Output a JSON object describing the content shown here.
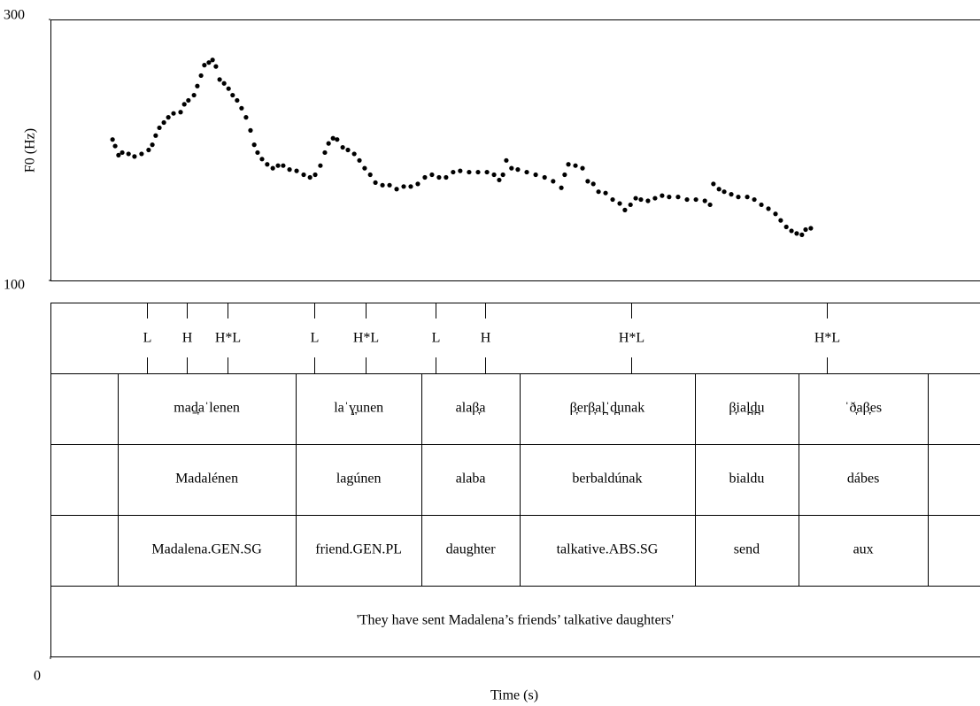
{
  "chart_data": {
    "type": "scatter",
    "ylabel": "F0 (Hz)",
    "xlabel": "Time (s)",
    "ylim": [
      100,
      300
    ],
    "yticks": [
      100,
      300
    ],
    "xlim": [
      0,
      2.5
    ],
    "xticks": [
      0
    ],
    "color": "#000000",
    "x": [
      0.167,
      0.174,
      0.183,
      0.193,
      0.21,
      0.226,
      0.245,
      0.264,
      0.274,
      0.283,
      0.293,
      0.305,
      0.317,
      0.331,
      0.35,
      0.36,
      0.371,
      0.386,
      0.395,
      0.405,
      0.414,
      0.426,
      0.436,
      0.445,
      0.455,
      0.467,
      0.479,
      0.49,
      0.502,
      0.514,
      0.526,
      0.538,
      0.548,
      0.557,
      0.569,
      0.583,
      0.598,
      0.612,
      0.626,
      0.643,
      0.662,
      0.681,
      0.698,
      0.712,
      0.726,
      0.738,
      0.748,
      0.76,
      0.771,
      0.786,
      0.8,
      0.817,
      0.831,
      0.845,
      0.86,
      0.874,
      0.893,
      0.912,
      0.931,
      0.95,
      0.969,
      0.988,
      1.007,
      1.026,
      1.045,
      1.064,
      1.083,
      1.102,
      1.126,
      1.15,
      1.174,
      1.193,
      1.207,
      1.217,
      1.226,
      1.24,
      1.257,
      1.281,
      1.305,
      1.329,
      1.352,
      1.374,
      1.383,
      1.393,
      1.412,
      1.431,
      1.445,
      1.46,
      1.474,
      1.493,
      1.512,
      1.531,
      1.545,
      1.56,
      1.574,
      1.588,
      1.607,
      1.626,
      1.645,
      1.664,
      1.688,
      1.712,
      1.736,
      1.76,
      1.774,
      1.783,
      1.798,
      1.812,
      1.831,
      1.85,
      1.874,
      1.893,
      1.912,
      1.931,
      1.95,
      1.964,
      1.979,
      1.993,
      2.007,
      2.021,
      2.031,
      2.045
    ],
    "values": [
      208,
      203,
      196,
      198,
      197,
      195,
      197,
      200,
      204,
      211,
      217,
      221,
      225,
      228,
      229,
      235,
      238,
      242,
      249,
      257,
      265,
      267,
      269,
      264,
      254,
      251,
      247,
      242,
      238,
      232,
      225,
      215,
      204,
      198,
      193,
      189,
      186,
      188,
      188,
      185,
      184,
      181,
      179,
      181,
      188,
      198,
      205,
      209,
      208,
      202,
      200,
      197,
      192,
      186,
      181,
      175,
      173,
      173,
      170,
      172,
      172,
      174,
      179,
      181,
      179,
      179,
      183,
      184,
      183,
      183,
      183,
      181,
      177,
      181,
      192,
      186,
      185,
      183,
      181,
      179,
      176,
      171,
      181,
      189,
      188,
      186,
      176,
      174,
      168,
      167,
      162,
      159,
      154,
      158,
      163,
      162,
      161,
      163,
      165,
      164,
      164,
      162,
      162,
      161,
      158,
      174,
      170,
      168,
      166,
      164,
      164,
      162,
      158,
      155,
      151,
      146,
      141,
      138,
      136,
      135,
      139,
      140
    ],
    "tones": {
      "labels": [
        "L",
        "H",
        "H*L",
        "L",
        "H*L",
        "L",
        "H",
        "H*L",
        "H*L"
      ],
      "times": [
        0.26,
        0.367,
        0.476,
        0.71,
        0.848,
        1.036,
        1.169,
        1.562,
        2.088
      ]
    },
    "boundaries": [
      0.181,
      0.66,
      0.998,
      1.262,
      1.733,
      2.012,
      2.36
    ],
    "tiers": [
      {
        "labels": [
          "maḏ̞aˈlenen",
          "laˈɣ̞unen",
          "alaβ̞a",
          "β̞erβ̞al̪ˈd̪unak",
          "β̞ial̪d̪u",
          "ˈð̞aβ̞es"
        ]
      },
      {
        "labels": [
          "Madalénen",
          "lagúnen",
          "alaba",
          "berbaldúnak",
          "bialdu",
          "dábes"
        ]
      },
      {
        "labels": [
          "Madalena.GEN.SG",
          "friend.GEN.PL",
          "daughter",
          "talkative.ABS.SG",
          "send",
          "aux"
        ]
      }
    ],
    "translation": "'They have sent Madalena’s friends’ talkative daughters'"
  }
}
